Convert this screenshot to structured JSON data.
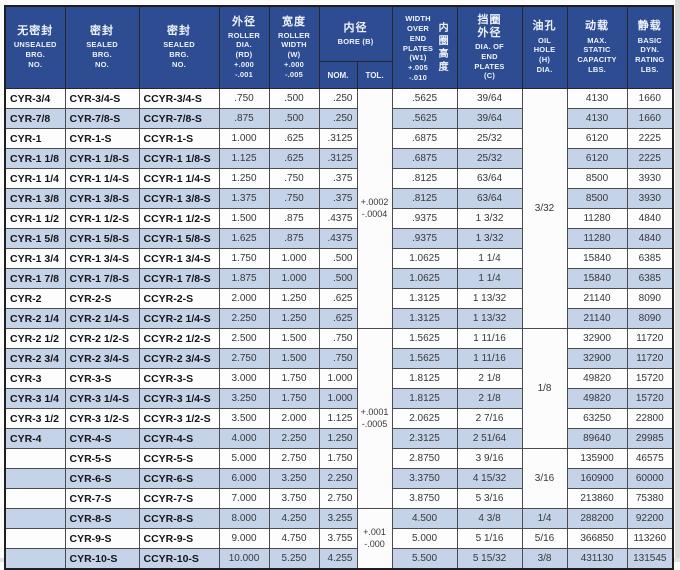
{
  "colors": {
    "header_bg": "#2d4c92",
    "header_text": "#eef2fa",
    "row_stripe": "#c5d3e9",
    "row_plain": "#fdfdfd",
    "grid_border": "#4c4c50",
    "outer_border": "#1f1f22"
  },
  "header": {
    "unsealed": {
      "zh": "无密封",
      "en": "UNSEALED\nBRG.\nNO."
    },
    "sealed": {
      "zh": "密封",
      "en": "SEALED\nBRG.\nNO."
    },
    "sealed_c": {
      "zh": "密封",
      "en": "SEALED\nBRG.\nNO."
    },
    "roller_dia": {
      "zh": "外径",
      "en": "ROLLER\nDIA.\n(RD)\n+.000\n-.001"
    },
    "roller_width": {
      "zh": "宽度",
      "en": "ROLLER\nWIDTH\n(W)\n+.000\n-.005"
    },
    "bore": {
      "zh": "内径",
      "en": "BORE (B)",
      "nom": "NOM.",
      "tol": "TOL."
    },
    "w1": {
      "en": "WIDTH\nOVER\nEND\nPLATES\n(W1)\n+.005\n-.010",
      "zh": "内圈高度"
    },
    "c": {
      "zh": "挡圈\n外径",
      "en": "DIA. OF\nEND\nPLATES\n(C)"
    },
    "oil": {
      "zh": "油孔",
      "en": "OIL\nHOLE\n(H)\nDIA."
    },
    "cap": {
      "zh": "动载",
      "en": "MAX.\nSTATIC\nCAPACITY\nLBS."
    },
    "dyn": {
      "zh": "静载",
      "en": "BASIC\nDYN.\nRATING\nLBS."
    }
  },
  "tol_spans": [
    {
      "row": 1,
      "span": 12,
      "text": "+.0002\n-.0004"
    },
    {
      "row": 13,
      "span": 9,
      "text": "+.0001\n-.0005"
    },
    {
      "row": 22,
      "span": 3,
      "text": "+.001\n-.000"
    }
  ],
  "oil_spans": [
    {
      "row": 1,
      "span": 12,
      "text": "3/32"
    },
    {
      "row": 13,
      "span": 6,
      "text": "1/8"
    },
    {
      "row": 19,
      "span": 3,
      "text": "3/16"
    },
    {
      "row": 22,
      "span": 1,
      "text": "1/4"
    },
    {
      "row": 23,
      "span": 1,
      "text": "5/16"
    },
    {
      "row": 24,
      "span": 1,
      "text": "3/8"
    }
  ],
  "rows": [
    {
      "unsealed": "CYR-3/4",
      "sealed": "CYR-3/4-S",
      "sealed2": "CCYR-3/4-S",
      "rd": ".750",
      "w": ".500",
      "nom": ".250",
      "w1": ".5625",
      "c": "39/64",
      "cap": "4130",
      "dyn": "1660"
    },
    {
      "unsealed": "CYR-7/8",
      "sealed": "CYR-7/8-S",
      "sealed2": "CCYR-7/8-S",
      "rd": ".875",
      "w": ".500",
      "nom": ".250",
      "w1": ".5625",
      "c": "39/64",
      "cap": "4130",
      "dyn": "1660"
    },
    {
      "unsealed": "CYR-1",
      "sealed": "CYR-1-S",
      "sealed2": "CCYR-1-S",
      "rd": "1.000",
      "w": ".625",
      "nom": ".3125",
      "w1": ".6875",
      "c": "25/32",
      "cap": "6120",
      "dyn": "2225"
    },
    {
      "unsealed": "CYR-1 1/8",
      "sealed": "CYR-1 1/8-S",
      "sealed2": "CCYR-1 1/8-S",
      "rd": "1.125",
      "w": ".625",
      "nom": ".3125",
      "w1": ".6875",
      "c": "25/32",
      "cap": "6120",
      "dyn": "2225"
    },
    {
      "unsealed": "CYR-1 1/4",
      "sealed": "CYR-1 1/4-S",
      "sealed2": "CCYR-1 1/4-S",
      "rd": "1.250",
      "w": ".750",
      "nom": ".375",
      "w1": ".8125",
      "c": "63/64",
      "cap": "8500",
      "dyn": "3930"
    },
    {
      "unsealed": "CYR-1 3/8",
      "sealed": "CYR-1 3/8-S",
      "sealed2": "CCYR-1 3/8-S",
      "rd": "1.375",
      "w": ".750",
      "nom": ".375",
      "w1": ".8125",
      "c": "63/64",
      "cap": "8500",
      "dyn": "3930"
    },
    {
      "unsealed": "CYR-1 1/2",
      "sealed": "CYR-1 1/2-S",
      "sealed2": "CCYR-1 1/2-S",
      "rd": "1.500",
      "w": ".875",
      "nom": ".4375",
      "w1": ".9375",
      "c": "1 3/32",
      "cap": "11280",
      "dyn": "4840"
    },
    {
      "unsealed": "CYR-1 5/8",
      "sealed": "CYR-1 5/8-S",
      "sealed2": "CCYR-1 5/8-S",
      "rd": "1.625",
      "w": ".875",
      "nom": ".4375",
      "w1": ".9375",
      "c": "1 3/32",
      "cap": "11280",
      "dyn": "4840"
    },
    {
      "unsealed": "CYR-1 3/4",
      "sealed": "CYR-1 3/4-S",
      "sealed2": "CCYR-1 3/4-S",
      "rd": "1.750",
      "w": "1.000",
      "nom": ".500",
      "w1": "1.0625",
      "c": "1 1/4",
      "cap": "15840",
      "dyn": "6385"
    },
    {
      "unsealed": "CYR-1 7/8",
      "sealed": "CYR-1 7/8-S",
      "sealed2": "CCYR-1 7/8-S",
      "rd": "1.875",
      "w": "1.000",
      "nom": ".500",
      "w1": "1.0625",
      "c": "1 1/4",
      "cap": "15840",
      "dyn": "6385"
    },
    {
      "unsealed": "CYR-2",
      "sealed": "CYR-2-S",
      "sealed2": "CCYR-2-S",
      "rd": "2.000",
      "w": "1.250",
      "nom": ".625",
      "w1": "1.3125",
      "c": "1 13/32",
      "cap": "21140",
      "dyn": "8090"
    },
    {
      "unsealed": "CYR-2 1/4",
      "sealed": "CYR-2 1/4-S",
      "sealed2": "CCYR-2 1/4-S",
      "rd": "2.250",
      "w": "1.250",
      "nom": ".625",
      "w1": "1.3125",
      "c": "1 13/32",
      "cap": "21140",
      "dyn": "8090"
    },
    {
      "unsealed": "CYR-2 1/2",
      "sealed": "CYR-2 1/2-S",
      "sealed2": "CCYR-2 1/2-S",
      "rd": "2.500",
      "w": "1.500",
      "nom": ".750",
      "w1": "1.5625",
      "c": "1 11/16",
      "cap": "32900",
      "dyn": "11720"
    },
    {
      "unsealed": "CYR-2 3/4",
      "sealed": "CYR-2 3/4-S",
      "sealed2": "CCYR-2 3/4-S",
      "rd": "2.750",
      "w": "1.500",
      "nom": ".750",
      "w1": "1.5625",
      "c": "1 11/16",
      "cap": "32900",
      "dyn": "11720"
    },
    {
      "unsealed": "CYR-3",
      "sealed": "CYR-3-S",
      "sealed2": "CCYR-3-S",
      "rd": "3.000",
      "w": "1.750",
      "nom": "1.000",
      "w1": "1.8125",
      "c": "2 1/8",
      "cap": "49820",
      "dyn": "15720"
    },
    {
      "unsealed": "CYR-3 1/4",
      "sealed": "CYR-3 1/4-S",
      "sealed2": "CCYR-3 1/4-S",
      "rd": "3.250",
      "w": "1.750",
      "nom": "1.000",
      "w1": "1.8125",
      "c": "2 1/8",
      "cap": "49820",
      "dyn": "15720"
    },
    {
      "unsealed": "CYR-3 1/2",
      "sealed": "CYR-3 1/2-S",
      "sealed2": "CCYR-3 1/2-S",
      "rd": "3.500",
      "w": "2.000",
      "nom": "1.125",
      "w1": "2.0625",
      "c": "2 7/16",
      "cap": "63250",
      "dyn": "22800"
    },
    {
      "unsealed": "CYR-4",
      "sealed": "CYR-4-S",
      "sealed2": "CCYR-4-S",
      "rd": "4.000",
      "w": "2.250",
      "nom": "1.250",
      "w1": "2.3125",
      "c": "2 51/64",
      "cap": "89640",
      "dyn": "29985"
    },
    {
      "unsealed": "",
      "sealed": "CYR-5-S",
      "sealed2": "CCYR-5-S",
      "rd": "5.000",
      "w": "2.750",
      "nom": "1.750",
      "w1": "2.8750",
      "c": "3 9/16",
      "cap": "135900",
      "dyn": "46575"
    },
    {
      "unsealed": "",
      "sealed": "CYR-6-S",
      "sealed2": "CCYR-6-S",
      "rd": "6.000",
      "w": "3.250",
      "nom": "2.250",
      "w1": "3.3750",
      "c": "4 15/32",
      "cap": "160900",
      "dyn": "60000"
    },
    {
      "unsealed": "",
      "sealed": "CYR-7-S",
      "sealed2": "CCYR-7-S",
      "rd": "7.000",
      "w": "3.750",
      "nom": "2.750",
      "w1": "3.8750",
      "c": "5 3/16",
      "cap": "213860",
      "dyn": "75380"
    },
    {
      "unsealed": "",
      "sealed": "CYR-8-S",
      "sealed2": "CCYR-8-S",
      "rd": "8.000",
      "w": "4.250",
      "nom": "3.255",
      "w1": "4.500",
      "c": "4 3/8",
      "cap": "288200",
      "dyn": "92200"
    },
    {
      "unsealed": "",
      "sealed": "CYR-9-S",
      "sealed2": "CCYR-9-S",
      "rd": "9.000",
      "w": "4.750",
      "nom": "3.755",
      "w1": "5.000",
      "c": "5 1/16",
      "cap": "366850",
      "dyn": "113260"
    },
    {
      "unsealed": "",
      "sealed": "CYR-10-S",
      "sealed2": "CCYR-10-S",
      "rd": "10.000",
      "w": "5.250",
      "nom": "4.255",
      "w1": "5.500",
      "c": "5 15/32",
      "cap": "431130",
      "dyn": "131545"
    }
  ]
}
